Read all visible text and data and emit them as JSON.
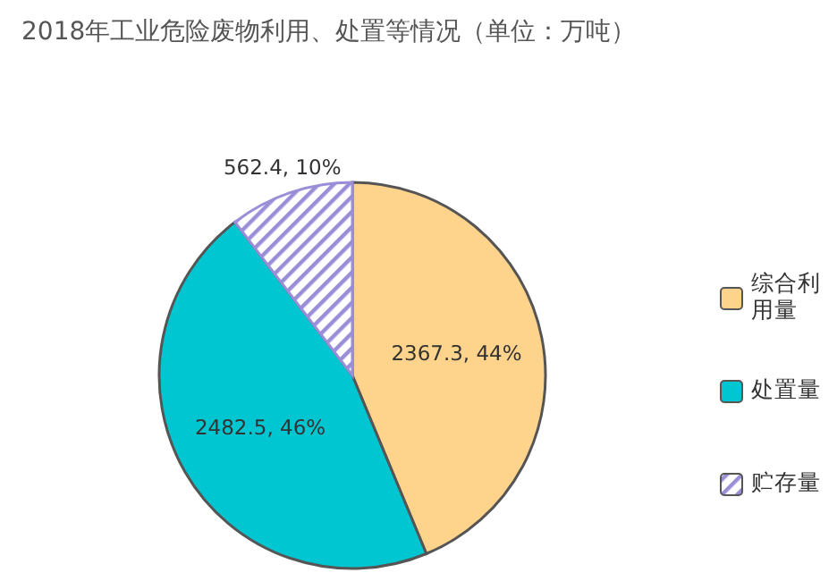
{
  "chart_data": {
    "type": "pie",
    "title": "2018年工业危险废物利用、处置等情况（单位：万吨）",
    "categories": [
      "综合利用量",
      "处置量",
      "贮存量"
    ],
    "values": [
      2367.3,
      2482.5,
      562.4
    ],
    "colors": [
      "#fed38b",
      "#00c6d1",
      "#9a8ed8"
    ],
    "value_labels": [
      "2367.3, 44%",
      "2482.5, 46%",
      "562.4, 10%"
    ],
    "legend": "right"
  }
}
